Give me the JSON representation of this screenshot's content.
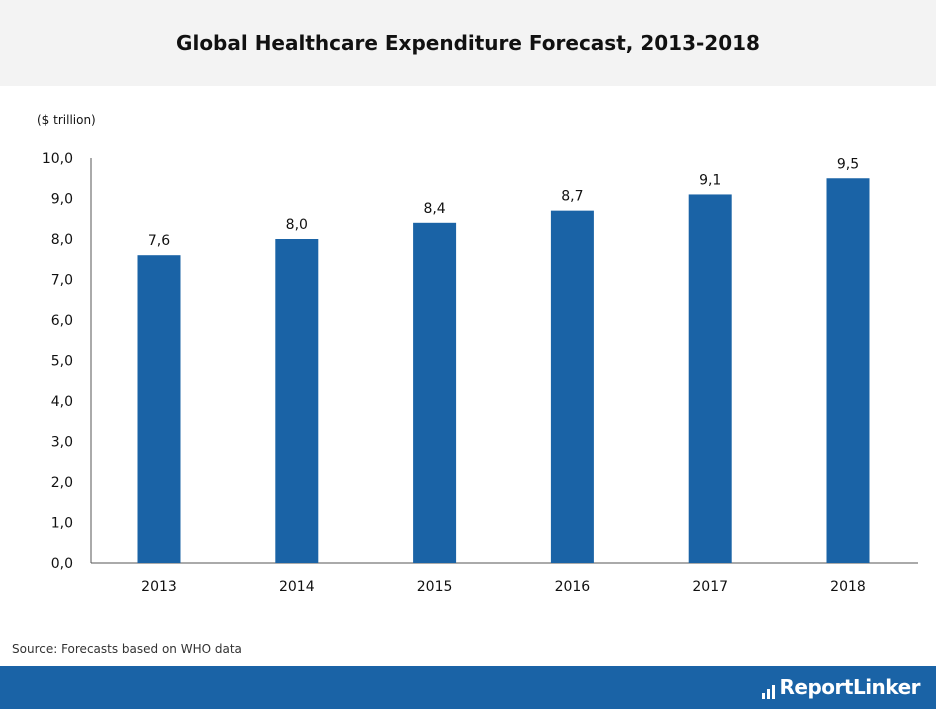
{
  "title": "Global Healthcare Expenditure Forecast, 2013-2018",
  "source": "Source: Forecasts based on WHO data",
  "brand": {
    "name": "ReportLinker",
    "footer_color": "#1a63a6"
  },
  "chart_data": {
    "type": "bar",
    "title": "Global Healthcare Expenditure Forecast, 2013-2018",
    "unit_label": "($ trillion)",
    "categories": [
      "2013",
      "2014",
      "2015",
      "2016",
      "2017",
      "2018"
    ],
    "values": [
      7.6,
      8.0,
      8.4,
      8.7,
      9.1,
      9.5
    ],
    "value_labels": [
      "7,6",
      "8,0",
      "8,4",
      "8,7",
      "9,1",
      "9,5"
    ],
    "y_ticks": [
      0,
      1,
      2,
      3,
      4,
      5,
      6,
      7,
      8,
      9,
      10
    ],
    "y_tick_labels": [
      "0,0",
      "1,0",
      "2,0",
      "3,0",
      "4,0",
      "5,0",
      "6,0",
      "7,0",
      "8,0",
      "9,0",
      "10,0"
    ],
    "ylim": [
      0,
      10
    ],
    "bar_color": "#1a63a6",
    "grid": false,
    "legend": "none"
  }
}
